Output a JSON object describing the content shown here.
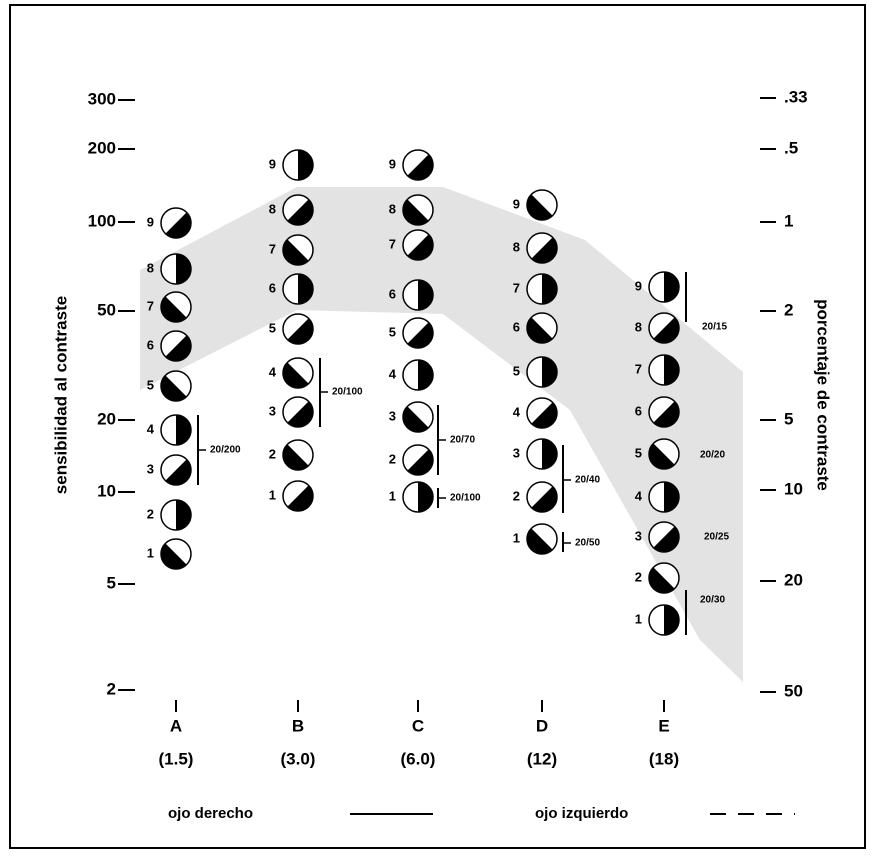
{
  "axes": {
    "left_title": "sensibilidad al contraste",
    "right_title": "porcentaje de contraste",
    "left_ticks": [
      "300",
      "200",
      "100",
      "50",
      "20",
      "10",
      "5",
      "2"
    ],
    "right_ticks": [
      ".33",
      ".5",
      "1",
      "2",
      "5",
      "10",
      "20",
      "50"
    ]
  },
  "columns": [
    {
      "letter": "A",
      "frequency": "(1.5)",
      "patches": [
        "1",
        "2",
        "3",
        "4",
        "5",
        "6",
        "7",
        "8",
        "9"
      ],
      "acuity": [
        "20/200"
      ]
    },
    {
      "letter": "B",
      "frequency": "(3.0)",
      "patches": [
        "1",
        "2",
        "3",
        "4",
        "5",
        "6",
        "7",
        "8",
        "9"
      ],
      "acuity": [
        "20/100"
      ]
    },
    {
      "letter": "C",
      "frequency": "(6.0)",
      "patches": [
        "1",
        "2",
        "3",
        "4",
        "5",
        "6",
        "7",
        "8",
        "9"
      ],
      "acuity": [
        "20/70",
        "20/100"
      ]
    },
    {
      "letter": "D",
      "frequency": "(12)",
      "patches": [
        "1",
        "2",
        "3",
        "4",
        "5",
        "6",
        "7",
        "8",
        "9"
      ],
      "acuity": [
        "20/40",
        "20/50"
      ]
    },
    {
      "letter": "E",
      "frequency": "(18)",
      "patches": [
        "1",
        "2",
        "3",
        "4",
        "5",
        "6",
        "7",
        "8",
        "9"
      ],
      "acuity": [
        "20/15",
        "20/20",
        "20/25",
        "20/30"
      ]
    }
  ],
  "legend": [
    "ojo derecho",
    "ojo izquierdo"
  ]
}
